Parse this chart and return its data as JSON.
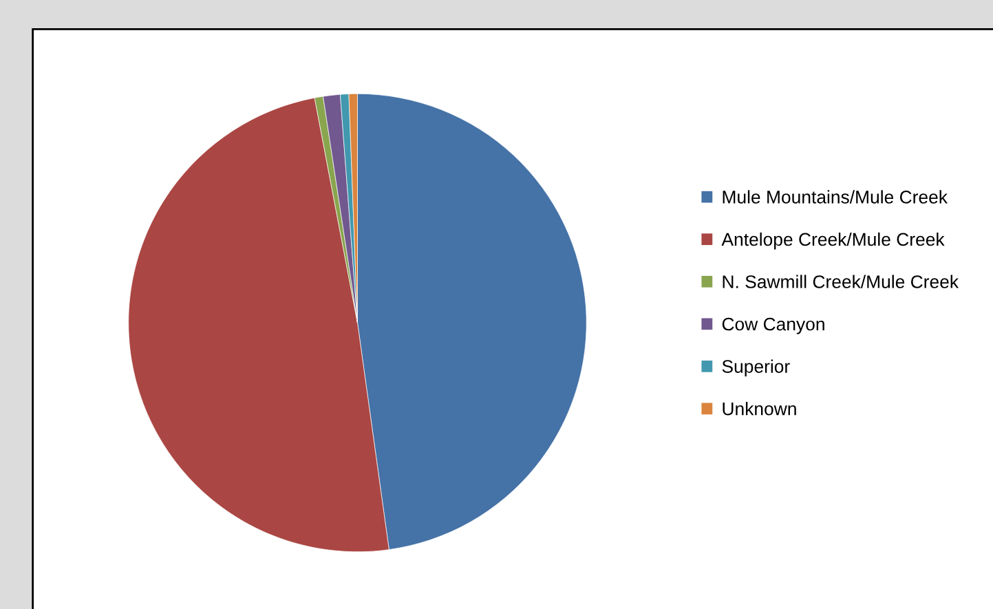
{
  "chart_data": {
    "type": "pie",
    "categories": [
      "Mule Mountains/Mule Creek",
      "Antelope Creek/Mule Creek",
      "N. Sawmill Creek/Mule Creek",
      "Cow Canyon",
      "Superior",
      "Unknown"
    ],
    "values": [
      47.8,
      49.2,
      0.6,
      1.2,
      0.6,
      0.6
    ],
    "colors": [
      "#4572a7",
      "#aa4643",
      "#89a54e",
      "#71588f",
      "#4198af",
      "#db843d"
    ],
    "legend": "right"
  }
}
